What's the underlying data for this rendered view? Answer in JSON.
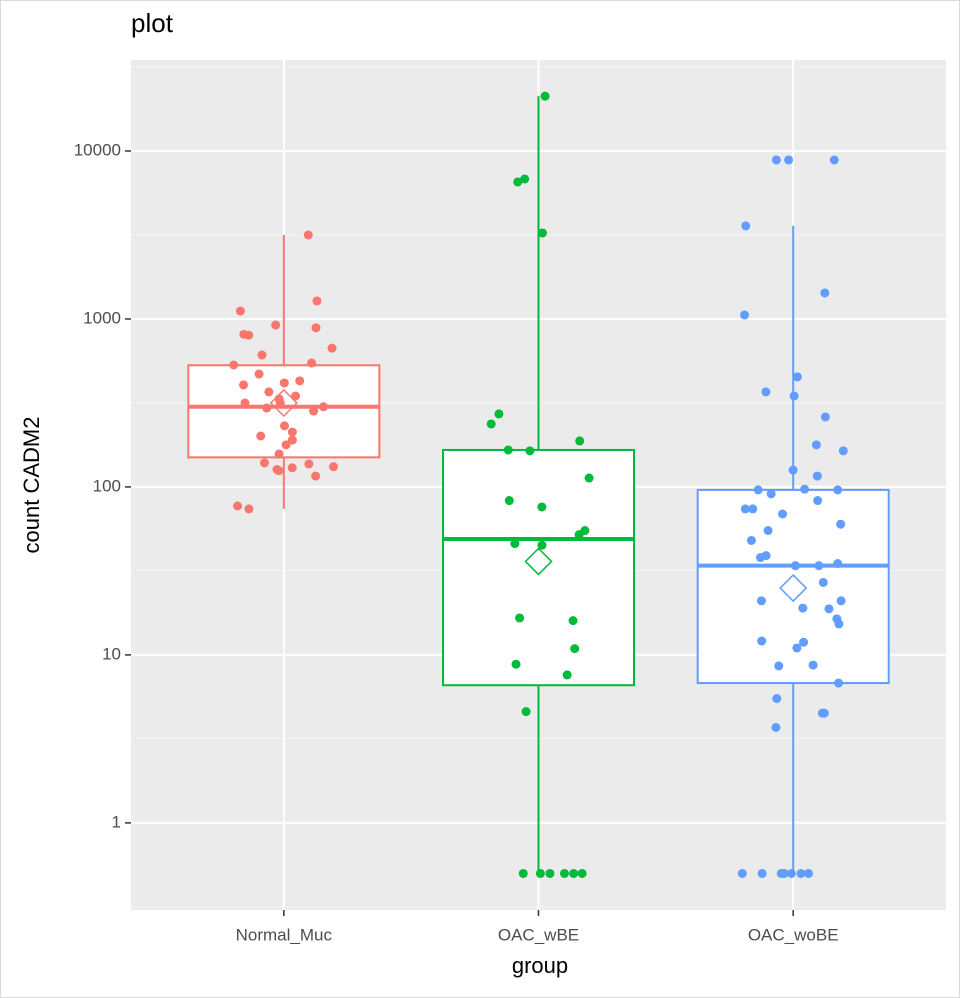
{
  "chart_data": {
    "type": "box",
    "title": "plot",
    "x_label": "group",
    "y_label": "count CADM2",
    "log_scale": true,
    "grid": true,
    "ylim": [
      0.303,
      34800
    ],
    "yticks": [
      1,
      10,
      100,
      1000,
      10000
    ],
    "categories": [
      "Normal_Muc",
      "OAC_wBE",
      "OAC_woBE"
    ],
    "groups": [
      {
        "color": "#F8766D",
        "whisker_low": 74,
        "q1": 150,
        "median": 300,
        "q3": 530,
        "whisker_high": 3160,
        "mean": 316,
        "points": [
          3160,
          1115,
          920,
          1280,
          800,
          885,
          810,
          670,
          610,
          547,
          532,
          470,
          428,
          416,
          405,
          368,
          348,
          334,
          316,
          316,
          283,
          300,
          295,
          231,
          212,
          201,
          190,
          178,
          157,
          139,
          132,
          137,
          130,
          125,
          127,
          116,
          77,
          74
        ]
      },
      {
        "color": "#00BA38",
        "whisker_low": 0.5,
        "q1": 6.6,
        "median": 49,
        "q3": 166,
        "whisker_high": 21200,
        "mean": 36,
        "points": [
          21200,
          6810,
          6540,
          3250,
          272,
          237,
          188,
          166,
          164,
          113,
          83,
          76,
          55,
          52,
          46,
          45,
          16,
          16.6,
          10.9,
          8.8,
          7.6,
          4.6,
          0.5,
          0.5,
          0.5,
          0.5,
          0.5,
          0.5
        ]
      },
      {
        "color": "#619CFF",
        "whisker_low": 0.5,
        "q1": 6.8,
        "median": 34,
        "q3": 96,
        "whisker_high": 3580,
        "mean": 25,
        "points": [
          8840,
          8840,
          8840,
          3580,
          1428,
          1056,
          452,
          368,
          348,
          261,
          178,
          164,
          126,
          116,
          96,
          97,
          96,
          91,
          83,
          74,
          74,
          69,
          60,
          48,
          55,
          39,
          34,
          34,
          35,
          38,
          27,
          21,
          21,
          19,
          18.8,
          15.3,
          16.4,
          11.9,
          12.1,
          11,
          8.7,
          8.6,
          6.8,
          5.5,
          4.5,
          4.5,
          3.7,
          0.5,
          0.5,
          0.5,
          0.5,
          0.5,
          0.5,
          0.5
        ]
      }
    ]
  }
}
